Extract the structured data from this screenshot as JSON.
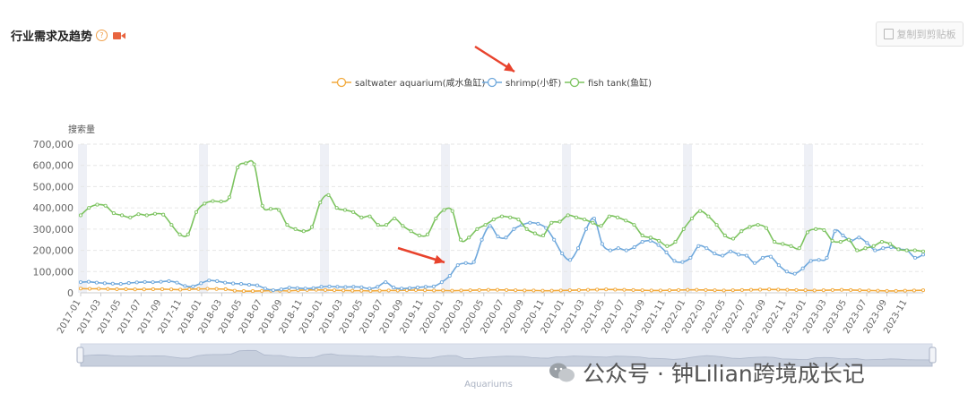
{
  "header": {
    "title": "行业需求及趋势",
    "help_icon": "?",
    "copy_button": "复制到剪贴板"
  },
  "watermark": {
    "text": "公众号 · 钟Lilian跨境成长记"
  },
  "chart_data": {
    "type": "line",
    "ylabel": "搜索量",
    "ylim": [
      0,
      700000
    ],
    "yticks": [
      "0",
      "100,000",
      "200,000",
      "300,000",
      "400,000",
      "500,000",
      "600,000",
      "700,000"
    ],
    "legend_position": "top-center",
    "zoom_label": "Aquariums",
    "x_tick_labels": [
      "2017-01",
      "2017-03",
      "2017-05",
      "2017-07",
      "2017-09",
      "2017-11",
      "2018-01",
      "2018-03",
      "2018-05",
      "2018-07",
      "2018-09",
      "2018-11",
      "2019-01",
      "2019-03",
      "2019-05",
      "2019-07",
      "2019-09",
      "2019-11",
      "2020-01",
      "2020-03",
      "2020-05",
      "2020-07",
      "2020-09",
      "2020-11",
      "2021-01",
      "2021-03",
      "2021-05",
      "2021-07",
      "2021-09",
      "2021-11",
      "2022-01",
      "2022-03",
      "2022-05",
      "2022-07",
      "2022-09",
      "2022-11",
      "2023-01",
      "2023-03",
      "2023-05",
      "2023-07",
      "2023-09",
      "2023-11"
    ],
    "series": [
      {
        "name": "saltwater aquarium(咸水鱼缸)",
        "color": "#f2a93b",
        "values": [
          20000,
          19000,
          19000,
          18000,
          17000,
          17000,
          16000,
          16000,
          17000,
          17000,
          16000,
          15000,
          17000,
          18000,
          19000,
          18000,
          17000,
          10000,
          8000,
          8000,
          9000,
          10000,
          10000,
          9000,
          12000,
          13000,
          14000,
          13000,
          12000,
          11000,
          10000,
          10000,
          9000,
          10000,
          11000,
          11000,
          12000,
          13000,
          12000,
          11000,
          11000,
          10000,
          11000,
          12000,
          13000,
          14000,
          14000,
          13000,
          12000,
          11000,
          11000,
          10000,
          10000,
          11000,
          12000,
          13000,
          14000,
          15000,
          16000,
          15000,
          14000,
          13000,
          12000,
          11000,
          11000,
          12000,
          13000,
          14000,
          14000,
          13000,
          12000,
          11000,
          12000,
          13000,
          14000,
          15000,
          16000,
          15000,
          14000,
          13000,
          12000,
          11000,
          12000,
          13000,
          14000,
          13000,
          12000,
          11000,
          10000,
          9000,
          9000,
          10000,
          11000,
          12000
        ]
      },
      {
        "name": "shrimp(小虾)",
        "color": "#6fa8dc",
        "values": [
          50000,
          52000,
          48000,
          45000,
          43000,
          42000,
          46000,
          49000,
          51000,
          50000,
          52000,
          55000,
          48000,
          32000,
          30000,
          45000,
          58000,
          55000,
          48000,
          44000,
          42000,
          38000,
          35000,
          20000,
          12000,
          16000,
          24000,
          22000,
          20000,
          22000,
          28000,
          30000,
          28000,
          27000,
          28000,
          26000,
          20000,
          28000,
          50000,
          25000,
          20000,
          22000,
          25000,
          28000,
          30000,
          50000,
          80000,
          130000,
          140000,
          145000,
          250000,
          315000,
          265000,
          260000,
          300000,
          320000,
          330000,
          325000,
          305000,
          250000,
          185000,
          155000,
          210000,
          300000,
          350000,
          230000,
          200000,
          210000,
          200000,
          215000,
          240000,
          245000,
          225000,
          190000,
          150000,
          145000,
          165000,
          220000,
          210000,
          185000,
          175000,
          195000,
          180000,
          175000,
          140000,
          165000,
          170000,
          130000,
          100000,
          90000,
          115000,
          150000,
          155000,
          165000,
          290000,
          270000,
          245000,
          260000,
          235000,
          200000,
          210000,
          215000,
          205000,
          200000,
          165000,
          180000
        ]
      },
      {
        "name": "fish tank(鱼缸)",
        "color": "#7cc35f",
        "values": [
          365000,
          400000,
          415000,
          410000,
          375000,
          365000,
          355000,
          370000,
          365000,
          372000,
          368000,
          320000,
          275000,
          275000,
          380000,
          420000,
          432000,
          430000,
          450000,
          590000,
          610000,
          605000,
          410000,
          395000,
          390000,
          320000,
          300000,
          290000,
          310000,
          425000,
          460000,
          400000,
          390000,
          380000,
          355000,
          360000,
          320000,
          320000,
          350000,
          315000,
          290000,
          270000,
          275000,
          350000,
          390000,
          385000,
          250000,
          260000,
          300000,
          320000,
          345000,
          360000,
          355000,
          345000,
          300000,
          280000,
          270000,
          330000,
          335000,
          365000,
          355000,
          345000,
          330000,
          315000,
          360000,
          355000,
          340000,
          320000,
          270000,
          260000,
          245000,
          220000,
          240000,
          300000,
          350000,
          385000,
          360000,
          320000,
          270000,
          255000,
          290000,
          310000,
          320000,
          305000,
          240000,
          230000,
          220000,
          210000,
          285000,
          300000,
          295000,
          245000,
          240000,
          250000,
          200000,
          210000,
          220000,
          240000,
          230000,
          205000,
          200000,
          200000,
          195000
        ]
      }
    ]
  }
}
